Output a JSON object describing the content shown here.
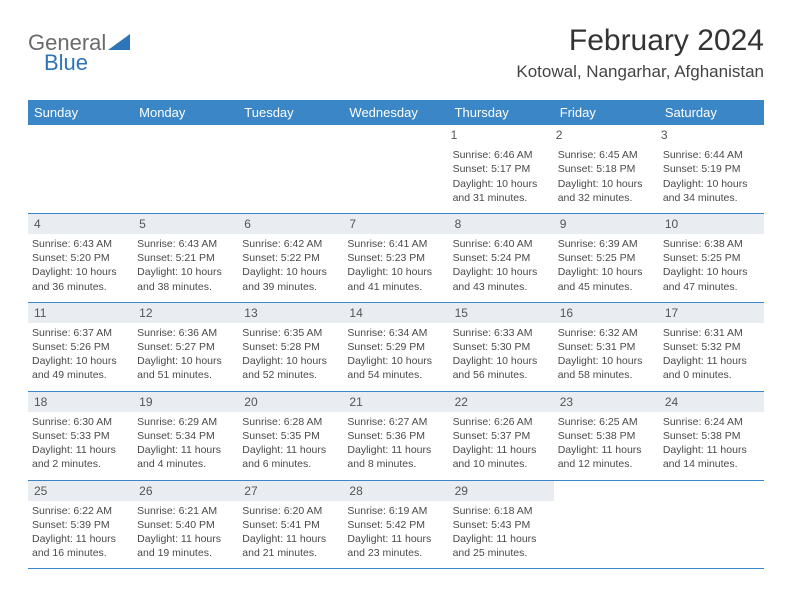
{
  "logo": {
    "text1": "General",
    "text2": "Blue"
  },
  "title": "February 2024",
  "location": "Kotowal, Nangarhar, Afghanistan",
  "weekdays": [
    "Sunday",
    "Monday",
    "Tuesday",
    "Wednesday",
    "Thursday",
    "Friday",
    "Saturday"
  ],
  "colors": {
    "header_bg": "#3b86c7",
    "header_text": "#ffffff",
    "daynum_bg": "#e9edf1",
    "border": "#3b86c7",
    "text": "#4a4a4a",
    "logo_gray": "#6a6a6a",
    "logo_blue": "#2d74b8"
  },
  "weeks": [
    [
      null,
      null,
      null,
      null,
      {
        "n": "1",
        "sr": "Sunrise: 6:46 AM",
        "ss": "Sunset: 5:17 PM",
        "dl": "Daylight: 10 hours and 31 minutes."
      },
      {
        "n": "2",
        "sr": "Sunrise: 6:45 AM",
        "ss": "Sunset: 5:18 PM",
        "dl": "Daylight: 10 hours and 32 minutes."
      },
      {
        "n": "3",
        "sr": "Sunrise: 6:44 AM",
        "ss": "Sunset: 5:19 PM",
        "dl": "Daylight: 10 hours and 34 minutes."
      }
    ],
    [
      {
        "n": "4",
        "sr": "Sunrise: 6:43 AM",
        "ss": "Sunset: 5:20 PM",
        "dl": "Daylight: 10 hours and 36 minutes."
      },
      {
        "n": "5",
        "sr": "Sunrise: 6:43 AM",
        "ss": "Sunset: 5:21 PM",
        "dl": "Daylight: 10 hours and 38 minutes."
      },
      {
        "n": "6",
        "sr": "Sunrise: 6:42 AM",
        "ss": "Sunset: 5:22 PM",
        "dl": "Daylight: 10 hours and 39 minutes."
      },
      {
        "n": "7",
        "sr": "Sunrise: 6:41 AM",
        "ss": "Sunset: 5:23 PM",
        "dl": "Daylight: 10 hours and 41 minutes."
      },
      {
        "n": "8",
        "sr": "Sunrise: 6:40 AM",
        "ss": "Sunset: 5:24 PM",
        "dl": "Daylight: 10 hours and 43 minutes."
      },
      {
        "n": "9",
        "sr": "Sunrise: 6:39 AM",
        "ss": "Sunset: 5:25 PM",
        "dl": "Daylight: 10 hours and 45 minutes."
      },
      {
        "n": "10",
        "sr": "Sunrise: 6:38 AM",
        "ss": "Sunset: 5:25 PM",
        "dl": "Daylight: 10 hours and 47 minutes."
      }
    ],
    [
      {
        "n": "11",
        "sr": "Sunrise: 6:37 AM",
        "ss": "Sunset: 5:26 PM",
        "dl": "Daylight: 10 hours and 49 minutes."
      },
      {
        "n": "12",
        "sr": "Sunrise: 6:36 AM",
        "ss": "Sunset: 5:27 PM",
        "dl": "Daylight: 10 hours and 51 minutes."
      },
      {
        "n": "13",
        "sr": "Sunrise: 6:35 AM",
        "ss": "Sunset: 5:28 PM",
        "dl": "Daylight: 10 hours and 52 minutes."
      },
      {
        "n": "14",
        "sr": "Sunrise: 6:34 AM",
        "ss": "Sunset: 5:29 PM",
        "dl": "Daylight: 10 hours and 54 minutes."
      },
      {
        "n": "15",
        "sr": "Sunrise: 6:33 AM",
        "ss": "Sunset: 5:30 PM",
        "dl": "Daylight: 10 hours and 56 minutes."
      },
      {
        "n": "16",
        "sr": "Sunrise: 6:32 AM",
        "ss": "Sunset: 5:31 PM",
        "dl": "Daylight: 10 hours and 58 minutes."
      },
      {
        "n": "17",
        "sr": "Sunrise: 6:31 AM",
        "ss": "Sunset: 5:32 PM",
        "dl": "Daylight: 11 hours and 0 minutes."
      }
    ],
    [
      {
        "n": "18",
        "sr": "Sunrise: 6:30 AM",
        "ss": "Sunset: 5:33 PM",
        "dl": "Daylight: 11 hours and 2 minutes."
      },
      {
        "n": "19",
        "sr": "Sunrise: 6:29 AM",
        "ss": "Sunset: 5:34 PM",
        "dl": "Daylight: 11 hours and 4 minutes."
      },
      {
        "n": "20",
        "sr": "Sunrise: 6:28 AM",
        "ss": "Sunset: 5:35 PM",
        "dl": "Daylight: 11 hours and 6 minutes."
      },
      {
        "n": "21",
        "sr": "Sunrise: 6:27 AM",
        "ss": "Sunset: 5:36 PM",
        "dl": "Daylight: 11 hours and 8 minutes."
      },
      {
        "n": "22",
        "sr": "Sunrise: 6:26 AM",
        "ss": "Sunset: 5:37 PM",
        "dl": "Daylight: 11 hours and 10 minutes."
      },
      {
        "n": "23",
        "sr": "Sunrise: 6:25 AM",
        "ss": "Sunset: 5:38 PM",
        "dl": "Daylight: 11 hours and 12 minutes."
      },
      {
        "n": "24",
        "sr": "Sunrise: 6:24 AM",
        "ss": "Sunset: 5:38 PM",
        "dl": "Daylight: 11 hours and 14 minutes."
      }
    ],
    [
      {
        "n": "25",
        "sr": "Sunrise: 6:22 AM",
        "ss": "Sunset: 5:39 PM",
        "dl": "Daylight: 11 hours and 16 minutes."
      },
      {
        "n": "26",
        "sr": "Sunrise: 6:21 AM",
        "ss": "Sunset: 5:40 PM",
        "dl": "Daylight: 11 hours and 19 minutes."
      },
      {
        "n": "27",
        "sr": "Sunrise: 6:20 AM",
        "ss": "Sunset: 5:41 PM",
        "dl": "Daylight: 11 hours and 21 minutes."
      },
      {
        "n": "28",
        "sr": "Sunrise: 6:19 AM",
        "ss": "Sunset: 5:42 PM",
        "dl": "Daylight: 11 hours and 23 minutes."
      },
      {
        "n": "29",
        "sr": "Sunrise: 6:18 AM",
        "ss": "Sunset: 5:43 PM",
        "dl": "Daylight: 11 hours and 25 minutes."
      },
      null,
      null
    ]
  ]
}
